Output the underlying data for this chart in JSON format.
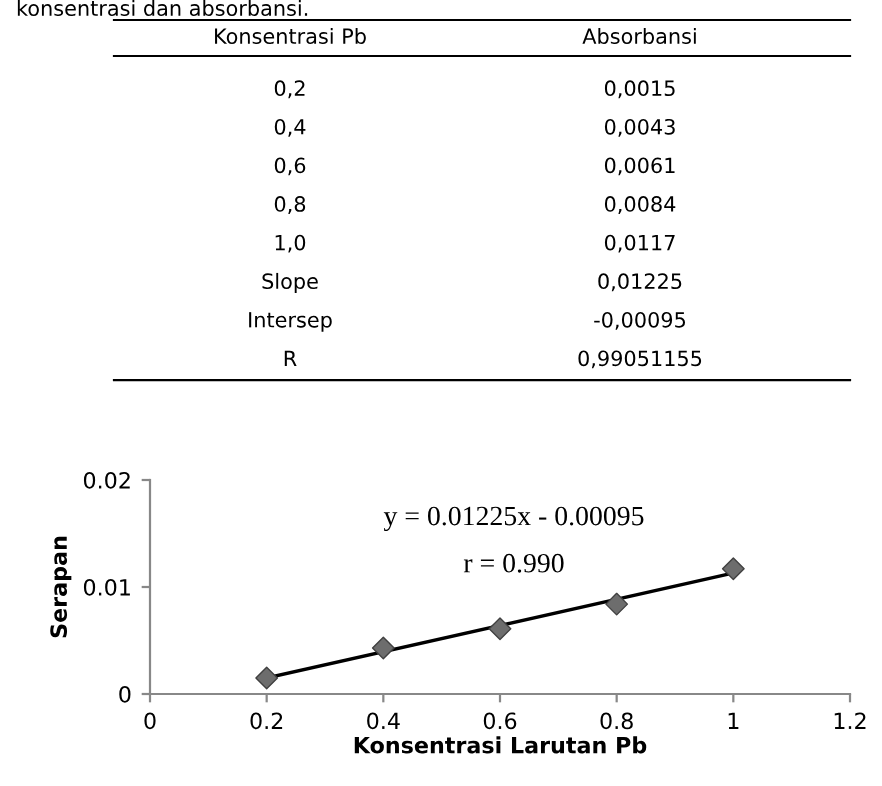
{
  "chart_data": {
    "type": "scatter",
    "xlabel": "Konsentrasi Larutan Pb",
    "ylabel": "Serapan",
    "x": [
      0.2,
      0.4,
      0.6,
      0.8,
      1.0
    ],
    "series": [
      {
        "color": "#6d6d6d",
        "marker": "diamond",
        "values": [
          0.0015,
          0.0043,
          0.0061,
          0.0084,
          0.0117
        ]
      },
      {
        "type": "line",
        "color": "#000000",
        "marker": "none",
        "x": [
          0.2,
          1.0
        ],
        "values": [
          0.0015,
          0.0113
        ]
      }
    ],
    "annotations": [
      "konsentrasi dan absorbansi.",
      "Konsentrasi Pb",
      "Absorbansi",
      "0,2",
      "0,0015",
      "0,4",
      "0,0043",
      "0,6",
      "0,0061",
      "0,8",
      "0,0084",
      "1,0",
      "0,0117",
      "Slope",
      "0,01225",
      "Intersep",
      "-0,00095",
      "R",
      "0,99051155",
      "y = 0.01225x - 0.00095",
      "r = 0.990"
    ],
    "xlim": [
      0,
      1.2
    ],
    "xticks": [
      0,
      0.2,
      0.4,
      0.6,
      0.8,
      1,
      1.2
    ],
    "ylim": [
      0,
      0.02
    ],
    "yticks": [
      0,
      0.01,
      0.02
    ],
    "grid": false,
    "legend": false
  }
}
